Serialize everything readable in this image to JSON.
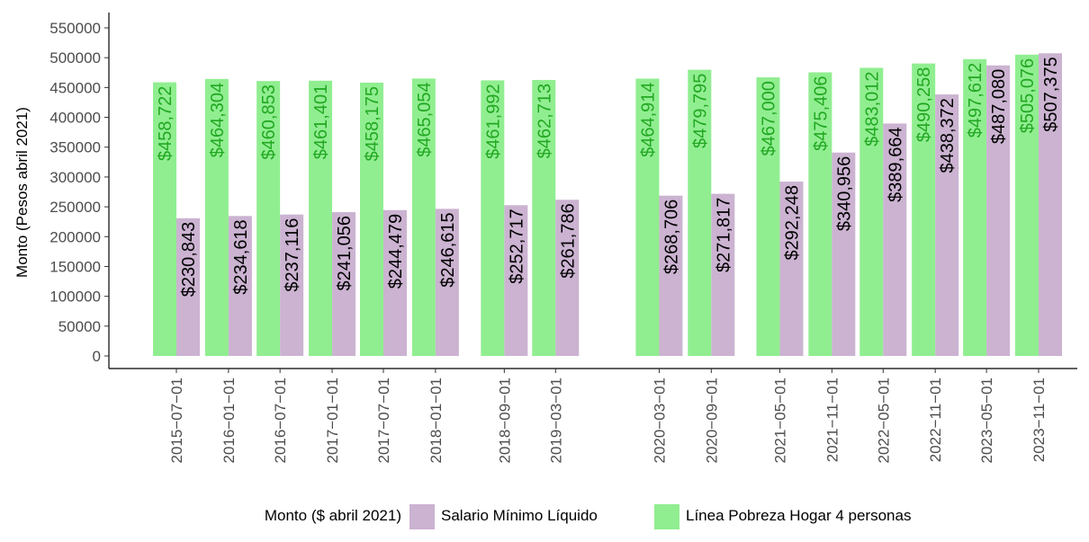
{
  "chart_data": {
    "type": "bar",
    "ylabel": "Monto (Pesos abril 2021)",
    "xlabel": "",
    "ylim": [
      0,
      550000
    ],
    "yticks": [
      0,
      50000,
      100000,
      150000,
      200000,
      250000,
      300000,
      350000,
      400000,
      450000,
      500000,
      550000
    ],
    "y_tick_labels": [
      "0",
      "50000",
      "100000",
      "150000",
      "200000",
      "250000",
      "300000",
      "350000",
      "400000",
      "450000",
      "500000",
      "550000"
    ],
    "x_axis": "date",
    "categories": [
      "2015-07-01",
      "2016-01-01",
      "2016-07-01",
      "2017-01-01",
      "2017-07-01",
      "2018-01-01",
      "2018-09-01",
      "2019-03-01",
      "2020-03-01",
      "2020-09-01",
      "2021-05-01",
      "2021-11-01",
      "2022-05-01",
      "2022-11-01",
      "2023-05-01",
      "2023-11-01"
    ],
    "x_tick_labels": [
      "2015−07−01",
      "2016−01−01",
      "2016−07−01",
      "2017−01−01",
      "2017−07−01",
      "2018−01−01",
      "2018−09−01",
      "2019−03−01",
      "2020−03−01",
      "2020−09−01",
      "2021−05−01",
      "2021−11−01",
      "2022−05−01",
      "2022−11−01",
      "2023−05−01",
      "2023−11−01"
    ],
    "series": [
      {
        "name": "Línea Pobreza Hogar 4 personas",
        "color": "#90ee90",
        "label_color": "#22a822",
        "values": [
          458722,
          464304,
          460853,
          461401,
          458175,
          465054,
          461992,
          462713,
          464914,
          479795,
          467000,
          475406,
          483012,
          490258,
          497612,
          505076
        ],
        "labels": [
          "$458,722",
          "$464,304",
          "$460,853",
          "$461,401",
          "$458,175",
          "$465,054",
          "$461,992",
          "$462,713",
          "$464,914",
          "$479,795",
          "$467,000",
          "$475,406",
          "$483,012",
          "$490,258",
          "$497,612",
          "$505,076"
        ]
      },
      {
        "name": "Salario Mínimo Líquido",
        "color": "#cbb3d1",
        "label_color": "#000000",
        "values": [
          230843,
          234618,
          237116,
          241056,
          244479,
          246615,
          252717,
          261786,
          268706,
          271817,
          292248,
          340956,
          389664,
          438372,
          487080,
          507375
        ],
        "labels": [
          "$230,843",
          "$234,618",
          "$237,116",
          "$241,056",
          "$244,479",
          "$246,615",
          "$252,717",
          "$261,786",
          "$268,706",
          "$271,817",
          "$292,248",
          "$340,956",
          "$389,664",
          "$438,372",
          "$487,080",
          "$507,375"
        ]
      }
    ],
    "legend": {
      "title": "Monto ($ abril 2021)",
      "position": "bottom",
      "order": [
        "Salario Mínimo Líquido",
        "Línea Pobreza Hogar 4 personas"
      ]
    },
    "grid": false
  }
}
